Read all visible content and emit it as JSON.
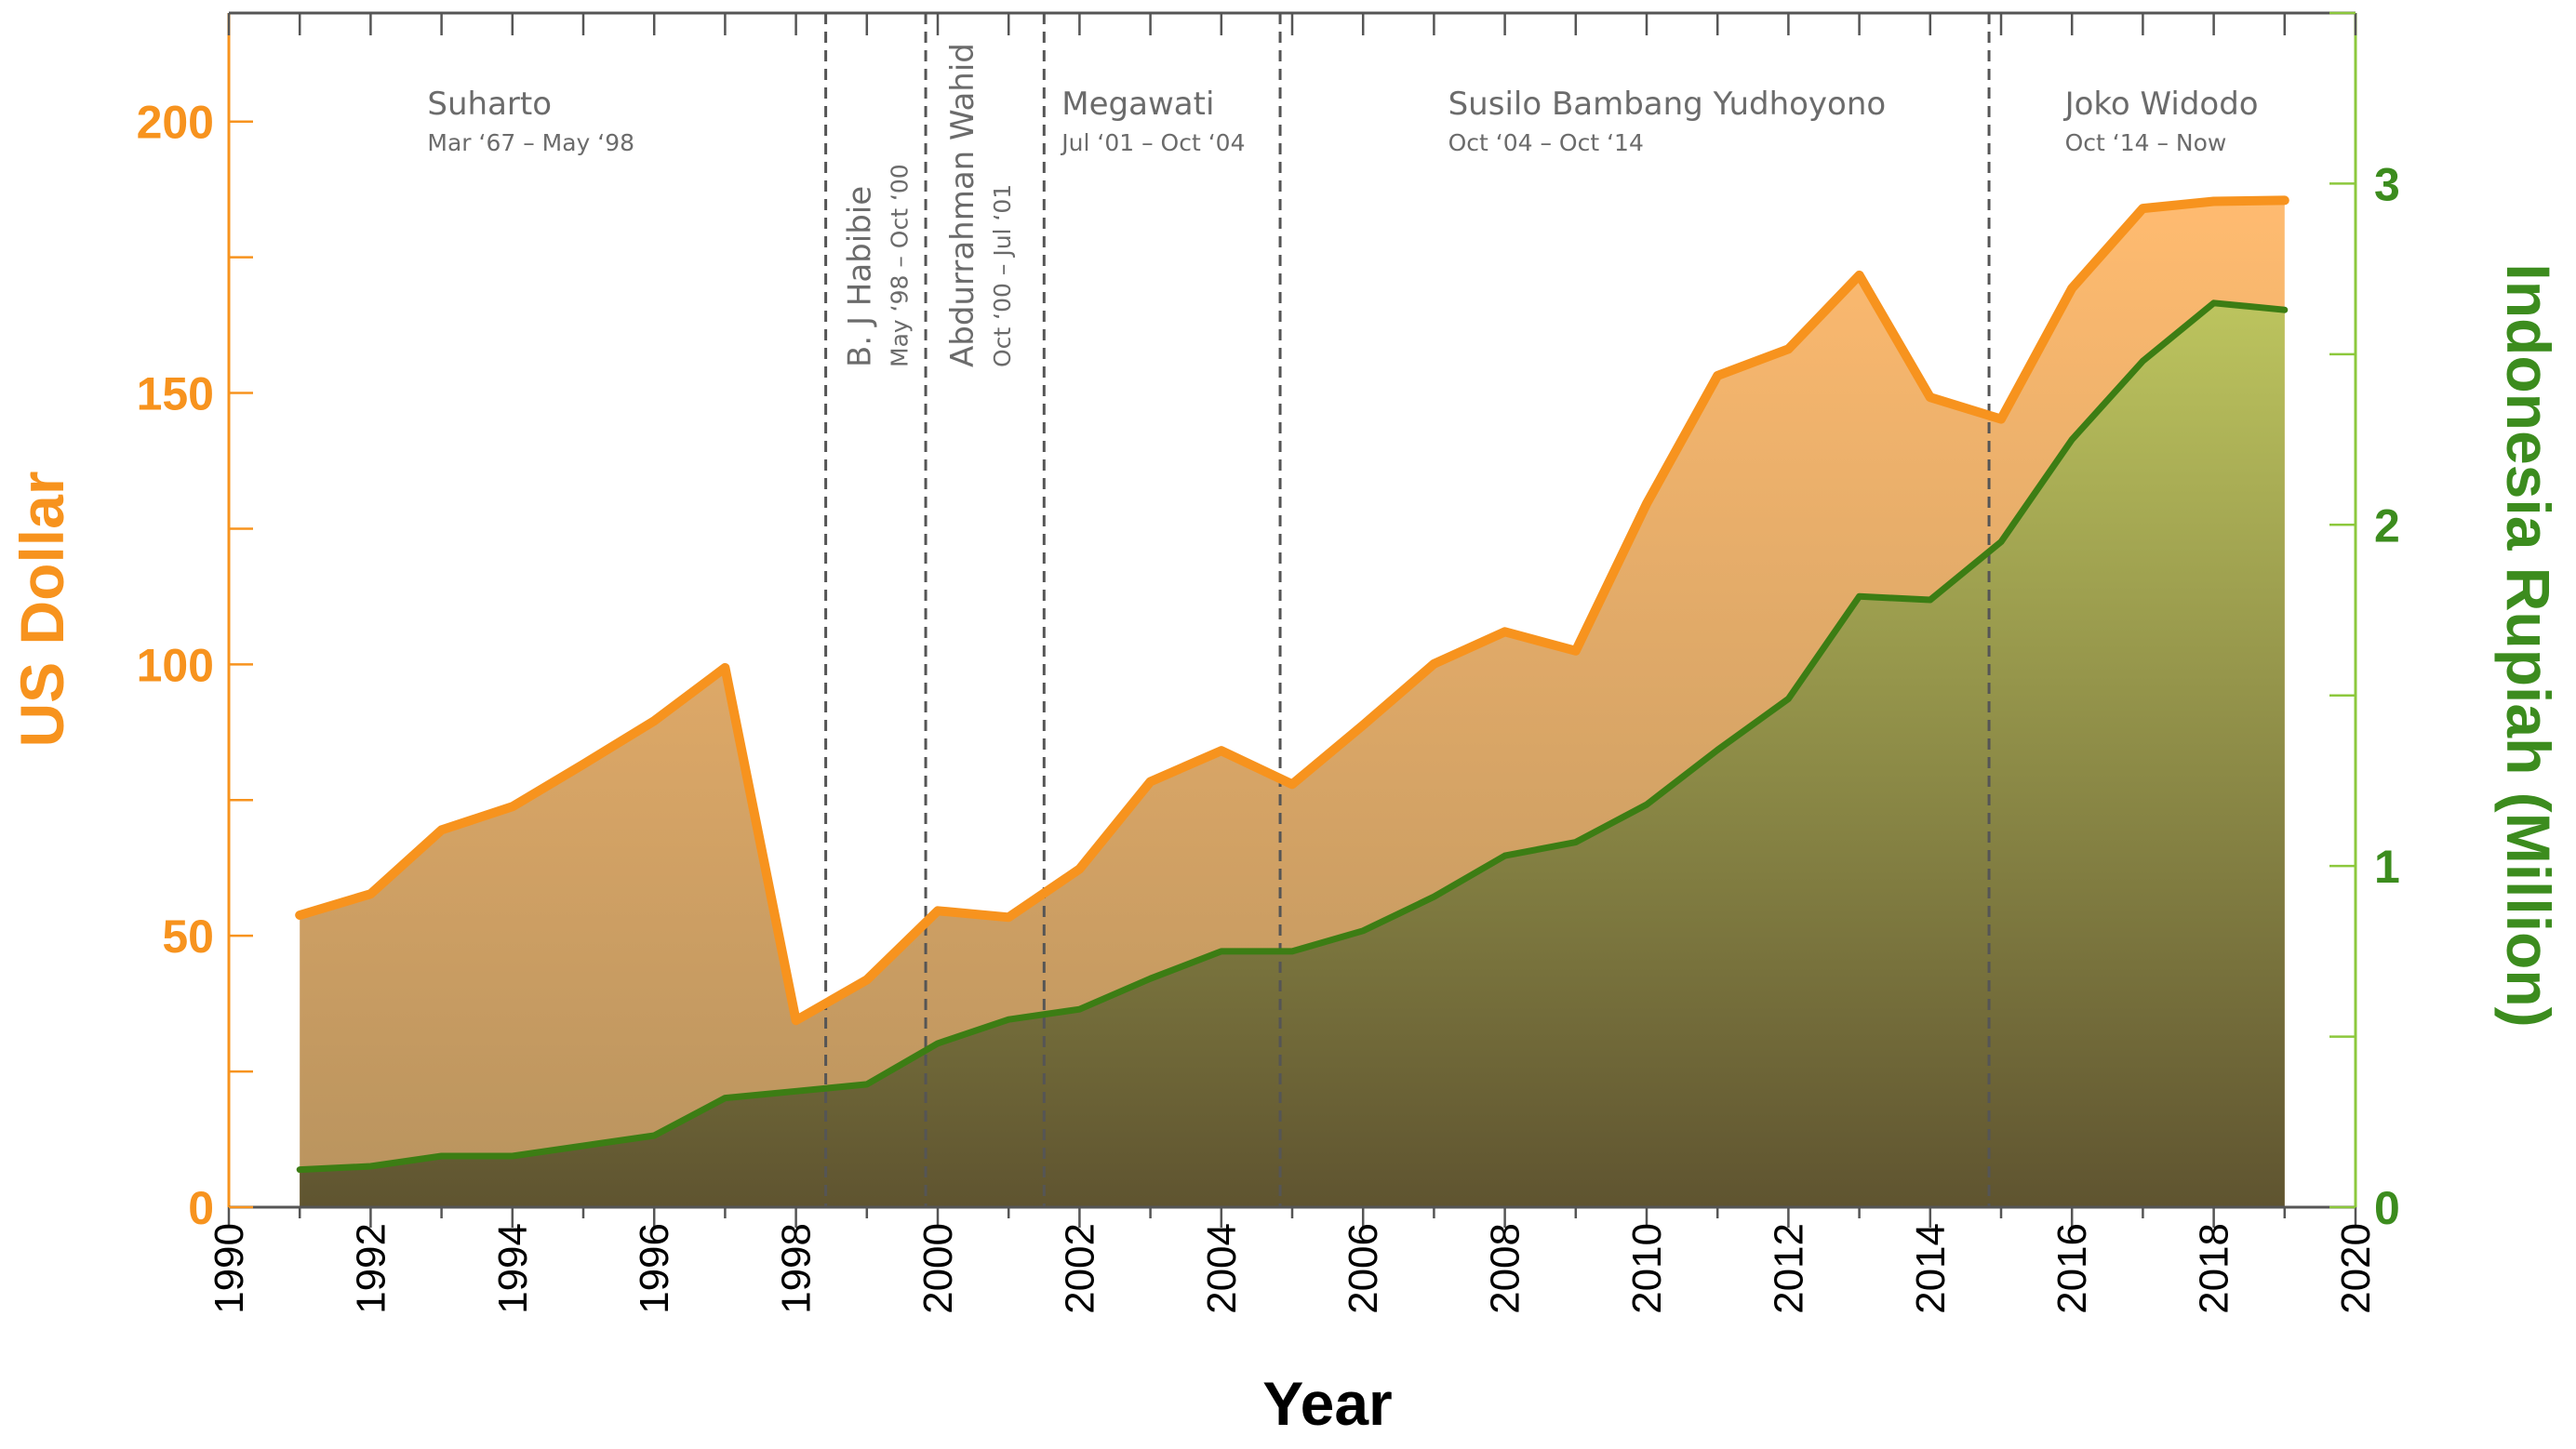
{
  "chart_data": {
    "type": "area",
    "xlabel": "Year",
    "ylabel": "US Dollar",
    "ylabel_right": "Indonesia Rupiah (Million)",
    "xlim": [
      1990,
      2020
    ],
    "ylim": [
      0,
      220
    ],
    "ylim_right": [
      0,
      3.5
    ],
    "x_ticks": [
      "1990",
      "1992",
      "1994",
      "1996",
      "1998",
      "2000",
      "2002",
      "2004",
      "2006",
      "2008",
      "2010",
      "2012",
      "2014",
      "2016",
      "2018",
      "2020"
    ],
    "y_ticks": [
      "0",
      "50",
      "100",
      "150",
      "200"
    ],
    "y_ticks_right": [
      "0",
      "1",
      "2",
      "3"
    ],
    "colors": {
      "usd": "#f7931e",
      "idr_line": "#3c7d14",
      "idr_fill_top": "#bcc45e",
      "idr_fill_bottom": "#5f5430",
      "usd_fill_top": "#ffbb70",
      "usd_fill_bottom": "#b8935e",
      "right_axis": "#8cc83c",
      "divider": "#555555"
    },
    "series": [
      {
        "name": "US Dollar",
        "axis": "left",
        "x": [
          1991,
          1992,
          1993,
          1994,
          1995,
          1996,
          1997,
          1998,
          1999,
          2000,
          2001,
          2002,
          2003,
          2004,
          2005,
          2006,
          2007,
          2008,
          2009,
          2010,
          2011,
          2012,
          2013,
          2014,
          2015,
          2016,
          2017,
          2018,
          2019
        ],
        "values": [
          53.8,
          57.7,
          69.5,
          73.8,
          81.6,
          89.6,
          99.4,
          34.4,
          41.9,
          54.6,
          53.4,
          62.3,
          78.4,
          84.1,
          77.9,
          88.8,
          100.1,
          106,
          102.5,
          129.6,
          153.2,
          158.1,
          171.7,
          149.2,
          145.2,
          169.3,
          184,
          185.3,
          185.5
        ]
      },
      {
        "name": "Indonesia Rupiah (Million)",
        "axis": "right",
        "x": [
          1991,
          1992,
          1993,
          1994,
          1995,
          1996,
          1997,
          1998,
          1999,
          2000,
          2001,
          2002,
          2003,
          2004,
          2005,
          2006,
          2007,
          2008,
          2009,
          2010,
          2011,
          2012,
          2013,
          2014,
          2015,
          2016,
          2017,
          2018,
          2019
        ],
        "values": [
          0.11,
          0.12,
          0.15,
          0.15,
          0.18,
          0.21,
          0.32,
          0.34,
          0.36,
          0.48,
          0.55,
          0.58,
          0.67,
          0.75,
          0.75,
          0.81,
          0.91,
          1.03,
          1.07,
          1.18,
          1.34,
          1.49,
          1.79,
          1.78,
          1.95,
          2.25,
          2.48,
          2.65,
          2.63
        ]
      }
    ],
    "eras": [
      {
        "name": "Suharto",
        "dates": "Mar ‘67 – May ‘98",
        "start": 1967.17,
        "end": 1998.42,
        "orientation": "horizontal",
        "label_x": 1992.8
      },
      {
        "name": "B. J Habibie",
        "dates": "May ‘98 – Oct ‘00",
        "start": 1998.42,
        "end": 1999.83,
        "orientation": "vertical",
        "label_x": 1999.05
      },
      {
        "name": "Abdurrahman Wahid",
        "dates": "Oct ‘00 – Jul ‘01",
        "start": 1999.83,
        "end": 2001.5,
        "orientation": "vertical",
        "label_x": 2000.5
      },
      {
        "name": "Megawati",
        "dates": "Jul ‘01 – Oct ‘04",
        "start": 2001.5,
        "end": 2004.83,
        "orientation": "horizontal",
        "label_x": 2001.75
      },
      {
        "name": "Susilo Bambang Yudhoyono",
        "dates": "Oct ‘04 – Oct ‘14",
        "start": 2004.83,
        "end": 2014.83,
        "orientation": "horizontal",
        "label_x": 2007.2
      },
      {
        "name": "Joko Widodo",
        "dates": "Oct ‘14 – Now",
        "start": 2014.83,
        "end": 2019,
        "orientation": "horizontal",
        "label_x": 2015.9
      }
    ]
  }
}
